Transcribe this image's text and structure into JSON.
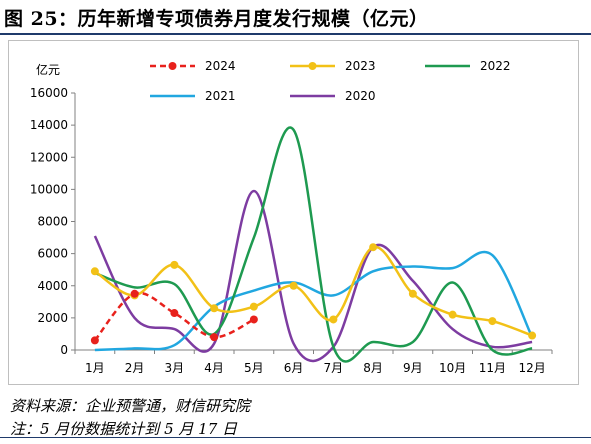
{
  "figure": {
    "title": "图 25：历年新增专项债券月度发行规模（亿元）",
    "source": "资料来源：企业预警通，财信研究院",
    "note": "注：5 月份数据统计到 5 月 17 日"
  },
  "chart_data": {
    "type": "line",
    "unit_label": "亿元",
    "categories": [
      "1月",
      "2月",
      "3月",
      "4月",
      "5月",
      "6月",
      "7月",
      "8月",
      "9月",
      "10月",
      "11月",
      "12月"
    ],
    "ylim": [
      0,
      16000
    ],
    "yticks": [
      0,
      2000,
      4000,
      6000,
      8000,
      10000,
      12000,
      14000,
      16000
    ],
    "grid": false,
    "legend_position": "top",
    "series": [
      {
        "name": "2024",
        "color": "#e8211c",
        "dashed": true,
        "markers": true,
        "values": [
          600,
          3500,
          2300,
          800,
          1900,
          null,
          null,
          null,
          null,
          null,
          null,
          null
        ]
      },
      {
        "name": "2023",
        "color": "#f2c117",
        "dashed": false,
        "markers": true,
        "values": [
          4900,
          3400,
          5300,
          2600,
          2700,
          4000,
          1900,
          6400,
          3500,
          2200,
          1800,
          900
        ]
      },
      {
        "name": "2022",
        "color": "#1e9a50",
        "dashed": false,
        "markers": false,
        "values": [
          4800,
          3900,
          4100,
          1000,
          7000,
          13700,
          200,
          500,
          500,
          4200,
          0,
          100
        ]
      },
      {
        "name": "2021",
        "color": "#21a7e0",
        "dashed": false,
        "markers": false,
        "values": [
          0,
          100,
          300,
          2700,
          3700,
          4200,
          3400,
          4900,
          5200,
          5100,
          5900,
          800
        ]
      },
      {
        "name": "2020",
        "color": "#7d3ca1",
        "dashed": false,
        "markers": false,
        "values": [
          7100,
          2000,
          1300,
          400,
          9900,
          400,
          200,
          6400,
          4300,
          1300,
          200,
          500
        ]
      }
    ]
  }
}
